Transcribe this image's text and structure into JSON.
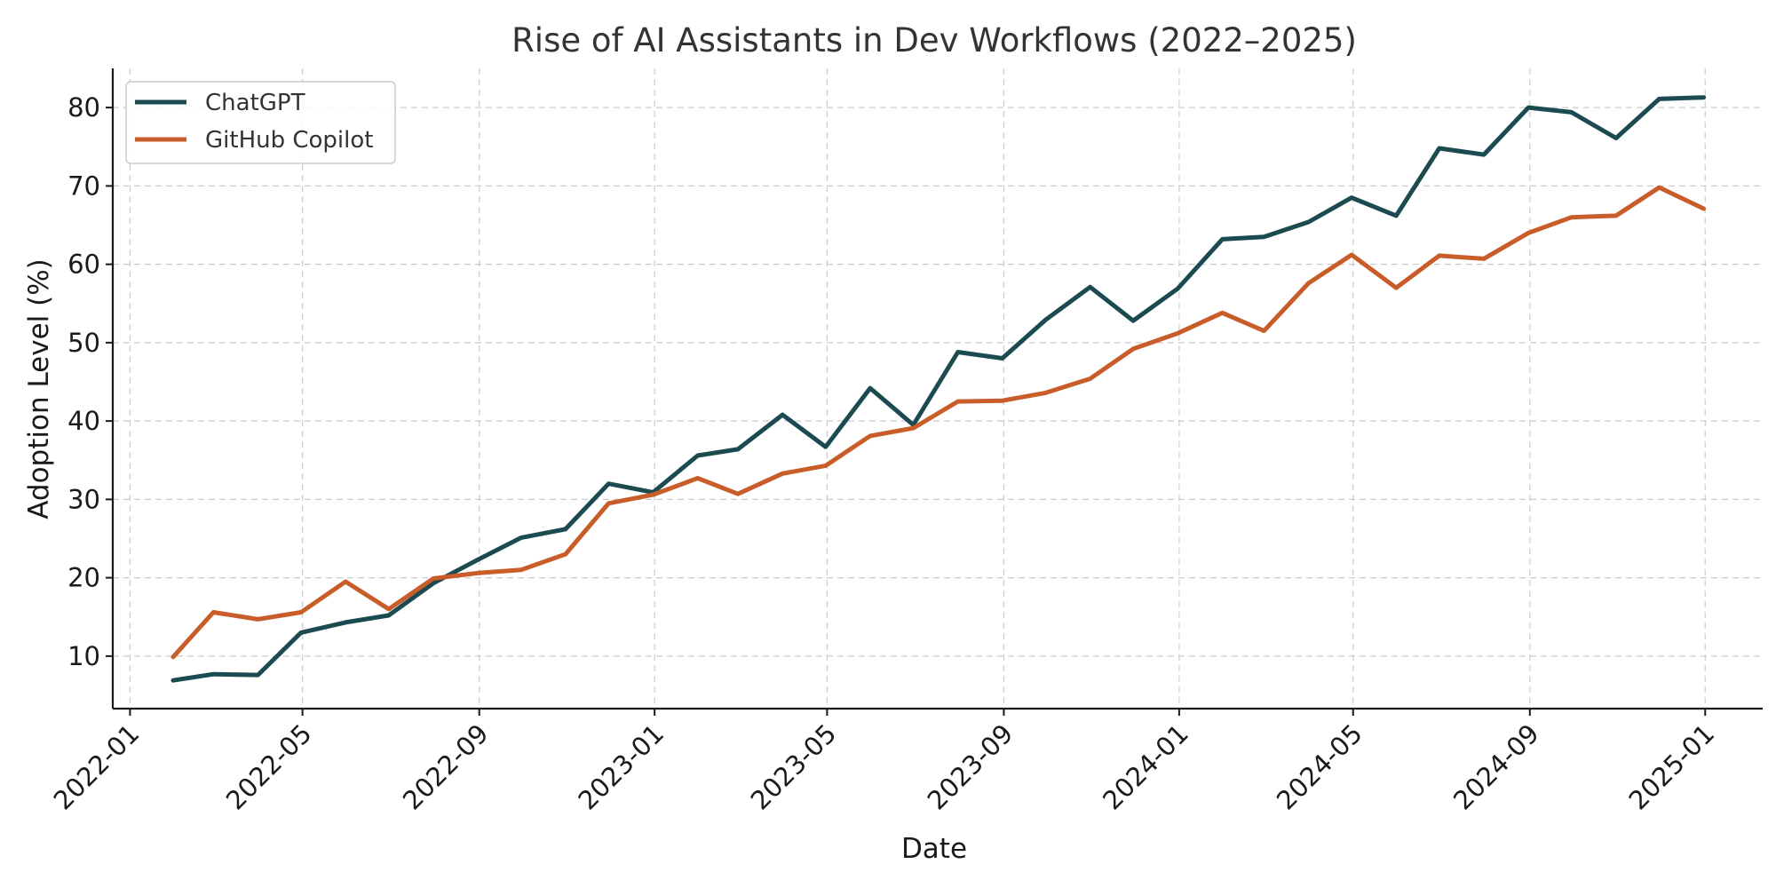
{
  "chart_data": {
    "type": "line",
    "title": "Rise of AI Assistants in Dev Workflows (2022–2025)",
    "xlabel": "Date",
    "ylabel": "Adoption Level (%)",
    "x_type": "date",
    "xlim": [
      "2021-12-20",
      "2025-02-10"
    ],
    "ylim": [
      3.3,
      85
    ],
    "x_ticks": [
      "2022-01",
      "2022-05",
      "2022-09",
      "2023-01",
      "2023-05",
      "2023-09",
      "2024-01",
      "2024-05",
      "2024-09",
      "2025-01"
    ],
    "y_ticks": [
      10,
      20,
      30,
      40,
      50,
      60,
      70,
      80
    ],
    "grid": true,
    "legend_position": "top-left",
    "x": [
      "2022-01-31",
      "2022-02-28",
      "2022-03-31",
      "2022-04-30",
      "2022-05-31",
      "2022-06-30",
      "2022-07-31",
      "2022-08-31",
      "2022-09-30",
      "2022-10-31",
      "2022-11-30",
      "2022-12-31",
      "2023-01-31",
      "2023-02-28",
      "2023-03-31",
      "2023-04-30",
      "2023-05-31",
      "2023-06-30",
      "2023-07-31",
      "2023-08-31",
      "2023-09-30",
      "2023-10-31",
      "2023-11-30",
      "2023-12-31",
      "2024-01-31",
      "2024-02-29",
      "2024-03-31",
      "2024-04-30",
      "2024-05-31",
      "2024-06-30",
      "2024-07-31",
      "2024-08-31",
      "2024-09-30",
      "2024-10-31",
      "2024-11-30",
      "2024-12-31"
    ],
    "series": [
      {
        "name": "ChatGPT",
        "color": "#1b4a50",
        "values": [
          6.9,
          7.7,
          7.6,
          13.0,
          14.3,
          15.2,
          19.3,
          22.3,
          25.1,
          26.2,
          32.0,
          30.9,
          35.6,
          36.4,
          40.8,
          36.7,
          44.2,
          39.5,
          48.8,
          48.0,
          52.9,
          57.1,
          52.8,
          56.9,
          63.2,
          63.5,
          65.4,
          68.5,
          66.2,
          74.8,
          74.0,
          80.0,
          79.4,
          76.1,
          81.1,
          81.3
        ]
      },
      {
        "name": "GitHub Copilot",
        "color": "#c85d2a",
        "values": [
          9.9,
          15.6,
          14.7,
          15.6,
          19.5,
          16.0,
          19.9,
          20.6,
          21.0,
          23.0,
          29.5,
          30.6,
          32.7,
          30.7,
          33.3,
          34.3,
          38.1,
          39.1,
          42.5,
          42.6,
          43.6,
          45.4,
          49.2,
          51.2,
          53.8,
          51.5,
          57.6,
          61.2,
          57.0,
          61.1,
          60.7,
          64.0,
          66.0,
          66.2,
          69.8,
          67.1
        ]
      }
    ]
  }
}
